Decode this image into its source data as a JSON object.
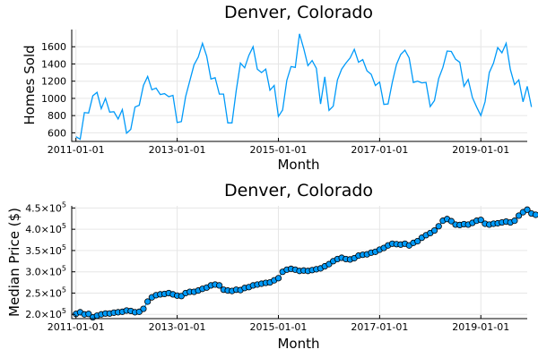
{
  "chart_data": [
    {
      "type": "line",
      "title": "Denver, Colorado",
      "xlabel": "Month",
      "ylabel": "Homes Sold",
      "ylim": [
        500,
        1800
      ],
      "yticks": [
        600,
        800,
        1000,
        1200,
        1400,
        1600
      ],
      "ytick_labels": [
        "600",
        "800",
        "1000",
        "1200",
        "1400",
        "1600"
      ],
      "xlim": [
        "2010-12-01",
        "2019-12-01"
      ],
      "xticks": [
        "2011-01-01",
        "2013-01-01",
        "2015-01-01",
        "2017-01-01",
        "2019-01-01"
      ],
      "grid": true,
      "legend": "none",
      "color": "#009AF9",
      "series": [
        {
          "start": "2011-01-01",
          "values": [
            555,
            525,
            835,
            830,
            1030,
            1070,
            880,
            1000,
            840,
            845,
            760,
            870,
            595,
            640,
            900,
            920,
            1150,
            1255,
            1100,
            1120,
            1045,
            1055,
            1020,
            1035,
            720,
            730,
            1020,
            1205,
            1390,
            1480,
            1640,
            1490,
            1225,
            1240,
            1050,
            1050,
            715,
            715,
            1090,
            1410,
            1355,
            1500,
            1600,
            1340,
            1300,
            1340,
            1095,
            1150,
            790,
            865,
            1210,
            1370,
            1360,
            1750,
            1580,
            1380,
            1440,
            1350,
            935,
            1250,
            860,
            910,
            1215,
            1340,
            1410,
            1470,
            1570,
            1420,
            1450,
            1320,
            1280,
            1150,
            1190,
            930,
            935,
            1185,
            1395,
            1510,
            1560,
            1470,
            1185,
            1200,
            1180,
            1185,
            905,
            975,
            1230,
            1360,
            1550,
            1545,
            1455,
            1420,
            1140,
            1220,
            1010,
            900,
            800,
            960,
            1300,
            1410,
            1590,
            1530,
            1640,
            1335,
            1160,
            1215,
            960,
            1140,
            900
          ]
        }
      ]
    },
    {
      "type": "scatter",
      "line": true,
      "title": "Denver, Colorado",
      "xlabel": "Month",
      "ylabel": "Median Price ($)",
      "ylim": [
        190000,
        455000
      ],
      "yticks": [
        200000,
        250000,
        300000,
        350000,
        400000,
        450000
      ],
      "ytick_mantissas": [
        "2.0",
        "2.5",
        "3.0",
        "3.5",
        "4.0",
        "4.5"
      ],
      "ytick_base": "10",
      "ytick_exponent": "5",
      "xlim": [
        "2010-12-01",
        "2019-12-01"
      ],
      "xticks": [
        "2011-01-01",
        "2013-01-01",
        "2015-01-01",
        "2017-01-01",
        "2019-01-01"
      ],
      "grid": true,
      "legend": "none",
      "color": "#009AF9",
      "series": [
        {
          "start": "2011-01-01",
          "values": [
            201000,
            205000,
            200000,
            201000,
            193000,
            197000,
            200000,
            202000,
            202000,
            204000,
            205000,
            206000,
            209000,
            208000,
            205000,
            206000,
            213000,
            230000,
            240000,
            245000,
            247000,
            248000,
            250000,
            247000,
            244000,
            243000,
            250000,
            253000,
            253000,
            256000,
            260000,
            263000,
            268000,
            270000,
            268000,
            258000,
            256000,
            255000,
            258000,
            257000,
            262000,
            264000,
            268000,
            270000,
            272000,
            274000,
            275000,
            280000,
            285000,
            300000,
            305000,
            307000,
            305000,
            302000,
            303000,
            302000,
            304000,
            306000,
            308000,
            313000,
            318000,
            325000,
            330000,
            333000,
            330000,
            329000,
            332000,
            338000,
            340000,
            341000,
            345000,
            347000,
            352000,
            356000,
            362000,
            366000,
            365000,
            364000,
            366000,
            362000,
            368000,
            372000,
            380000,
            386000,
            391000,
            397000,
            407000,
            420000,
            424000,
            419000,
            411000,
            410000,
            412000,
            411000,
            415000,
            420000,
            422000,
            413000,
            411000,
            413000,
            414000,
            416000,
            418000,
            416000,
            420000,
            432000,
            440000,
            446000,
            437000,
            434000
          ]
        }
      ]
    }
  ]
}
